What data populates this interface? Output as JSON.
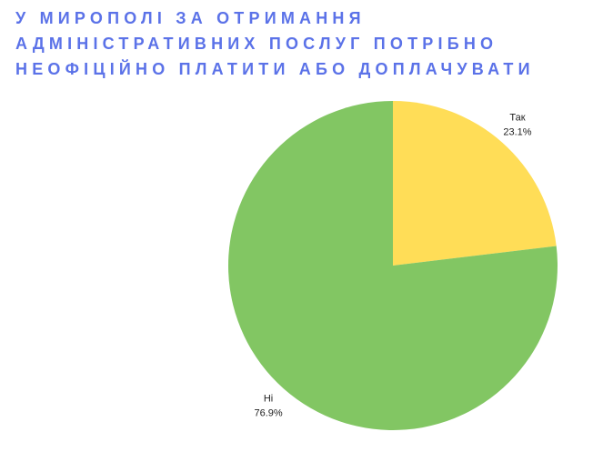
{
  "chart_data": {
    "type": "pie",
    "title": "У МИРОПОЛІ ЗА ОТРИМАННЯ АДМІНІСТРАТИВНИХ ПОСЛУГ ПОТРІБНО НЕОФІЦІЙНО ПЛАТИТИ АБО ДОПЛАЧУВАТИ",
    "categories": [
      "Так",
      "Ні"
    ],
    "values": [
      23.1,
      76.9
    ],
    "value_labels": [
      "23.1%",
      "76.9%"
    ],
    "colors": [
      "#ffdd57",
      "#82c663"
    ]
  }
}
